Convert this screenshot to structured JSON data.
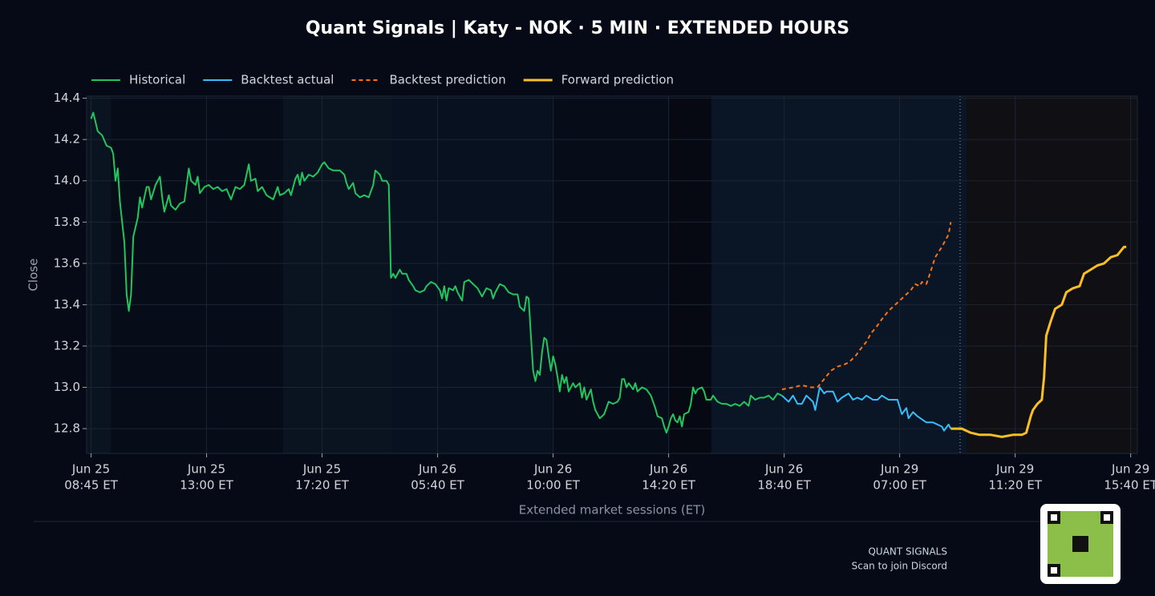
{
  "chart_data": {
    "type": "line",
    "title": "Quant Signals | Katy - NOK  ·  5 MIN  ·  EXTENDED HOURS",
    "ylabel": "Close",
    "xlabel": "Extended market sessions (ET)",
    "xlim": [
      -2,
      471
    ],
    "ylim": [
      12.68,
      14.41
    ],
    "grid": true,
    "yticks": [
      {
        "value": 12.8,
        "label": "12.8"
      },
      {
        "value": 13.0,
        "label": "13.0"
      },
      {
        "value": 13.2,
        "label": "13.2"
      },
      {
        "value": 13.4,
        "label": "13.4"
      },
      {
        "value": 13.6,
        "label": "13.6"
      },
      {
        "value": 13.8,
        "label": "13.8"
      },
      {
        "value": 14.0,
        "label": "14.0"
      },
      {
        "value": 14.2,
        "label": "14.2"
      },
      {
        "value": 14.4,
        "label": "14.4"
      }
    ],
    "xticks": [
      {
        "value": 0,
        "label": [
          "Jun 25",
          "08:45 ET"
        ]
      },
      {
        "value": 52,
        "label": [
          "Jun 25",
          "13:00 ET"
        ]
      },
      {
        "value": 104,
        "label": [
          "Jun 25",
          "17:20 ET"
        ]
      },
      {
        "value": 156,
        "label": [
          "Jun 26",
          "05:40 ET"
        ]
      },
      {
        "value": 208,
        "label": [
          "Jun 26",
          "10:00 ET"
        ]
      },
      {
        "value": 260,
        "label": [
          "Jun 26",
          "14:20 ET"
        ]
      },
      {
        "value": 312,
        "label": [
          "Jun 26",
          "18:40 ET"
        ]
      },
      {
        "value": 364,
        "label": [
          "Jun 29",
          "07:00 ET"
        ]
      },
      {
        "value": 416,
        "label": [
          "Jun 29",
          "11:20 ET"
        ]
      },
      {
        "value": 468,
        "label": [
          "Jun 29",
          "15:40 ET"
        ]
      }
    ],
    "series": [
      {
        "name": "Historical",
        "color": "#22c55e",
        "dashed": false,
        "x": [
          0,
          1,
          3,
          5,
          7,
          9,
          10,
          11,
          12,
          13,
          14,
          15,
          16,
          17,
          18,
          19,
          21,
          22,
          23,
          25,
          26,
          27,
          29,
          31,
          32,
          33,
          35,
          36,
          38,
          40,
          42,
          44,
          45,
          47,
          48,
          49,
          51,
          53,
          55,
          57,
          59,
          61,
          63,
          65,
          67,
          69,
          71,
          72,
          74,
          75,
          77,
          79,
          82,
          84,
          85,
          87,
          89,
          90,
          92,
          93,
          94,
          95,
          96,
          98,
          100,
          102,
          104,
          105,
          107,
          109,
          112,
          114,
          115,
          116,
          118,
          119,
          121,
          123,
          125,
          126,
          127,
          128,
          130,
          131,
          133,
          134,
          135,
          136,
          137,
          139,
          140,
          142,
          143,
          145,
          146,
          148,
          150,
          151,
          153,
          155,
          157,
          158,
          159,
          160,
          161,
          163,
          164,
          165,
          167,
          168,
          170,
          172,
          174,
          176,
          178,
          180,
          181,
          182,
          184,
          186,
          188,
          190,
          192,
          193,
          195,
          196,
          197,
          198,
          199,
          200,
          201,
          202,
          203,
          204,
          205,
          206,
          207,
          208,
          209,
          210,
          211,
          212,
          213,
          214,
          215,
          217,
          218,
          220,
          221,
          222,
          223,
          225,
          226,
          227,
          229,
          231,
          233,
          235,
          237,
          238,
          239,
          240,
          241,
          242,
          244,
          245,
          246,
          248,
          250,
          252,
          254,
          255,
          257,
          258,
          259,
          260,
          261,
          262,
          263,
          264,
          265,
          266,
          267,
          269,
          270,
          271,
          272,
          273,
          275,
          276,
          277,
          279,
          280,
          282,
          284,
          286,
          288,
          290,
          292,
          294,
          296,
          297,
          299,
          301,
          303,
          305,
          307,
          309,
          311
        ],
        "values": [
          14.3,
          14.33,
          14.24,
          14.22,
          14.17,
          14.16,
          14.13,
          14.0,
          14.06,
          13.9,
          13.8,
          13.7,
          13.45,
          13.37,
          13.45,
          13.73,
          13.82,
          13.92,
          13.87,
          13.97,
          13.97,
          13.91,
          13.98,
          14.02,
          13.92,
          13.85,
          13.93,
          13.88,
          13.86,
          13.89,
          13.9,
          14.06,
          14.0,
          13.98,
          14.02,
          13.94,
          13.97,
          13.98,
          13.96,
          13.97,
          13.95,
          13.96,
          13.91,
          13.97,
          13.96,
          13.98,
          14.08,
          14.0,
          14.01,
          13.95,
          13.97,
          13.93,
          13.91,
          13.97,
          13.93,
          13.94,
          13.96,
          13.93,
          14.01,
          14.03,
          13.98,
          14.04,
          14.0,
          14.03,
          14.02,
          14.04,
          14.08,
          14.09,
          14.06,
          14.05,
          14.05,
          14.03,
          13.99,
          13.96,
          13.99,
          13.94,
          13.92,
          13.93,
          13.92,
          13.95,
          13.98,
          14.05,
          14.03,
          14.0,
          14.0,
          13.98,
          13.53,
          13.55,
          13.53,
          13.57,
          13.55,
          13.55,
          13.52,
          13.49,
          13.47,
          13.46,
          13.47,
          13.49,
          13.51,
          13.5,
          13.47,
          13.43,
          13.49,
          13.42,
          13.48,
          13.47,
          13.49,
          13.46,
          13.42,
          13.51,
          13.52,
          13.5,
          13.48,
          13.44,
          13.48,
          13.47,
          13.43,
          13.46,
          13.5,
          13.49,
          13.46,
          13.45,
          13.45,
          13.39,
          13.37,
          13.44,
          13.43,
          13.25,
          13.08,
          13.03,
          13.08,
          13.06,
          13.17,
          13.24,
          13.23,
          13.15,
          13.08,
          13.15,
          13.11,
          13.05,
          12.98,
          13.06,
          13.02,
          13.05,
          12.98,
          13.02,
          13.0,
          13.02,
          12.95,
          13.0,
          12.94,
          12.99,
          12.93,
          12.89,
          12.85,
          12.87,
          12.93,
          12.92,
          12.93,
          12.95,
          13.04,
          13.04,
          13.0,
          13.02,
          12.99,
          13.02,
          12.98,
          13.0,
          12.99,
          12.96,
          12.9,
          12.86,
          12.85,
          12.81,
          12.78,
          12.81,
          12.85,
          12.87,
          12.84,
          12.83,
          12.86,
          12.81,
          12.87,
          12.88,
          12.92,
          13.0,
          12.97,
          12.99,
          13.0,
          12.98,
          12.94,
          12.94,
          12.96,
          12.93,
          12.92,
          12.92,
          12.91,
          12.92,
          12.91,
          12.93,
          12.91,
          12.96,
          12.94,
          12.95,
          12.95,
          12.96,
          12.94,
          12.97,
          12.96
        ]
      },
      {
        "name": "Backtest actual",
        "color": "#38bdf8",
        "dashed": false,
        "x": [
          311,
          314,
          316,
          318,
          320,
          322,
          323,
          325,
          326,
          328,
          330,
          331,
          334,
          336,
          338,
          341,
          343,
          345,
          347,
          349,
          352,
          354,
          356,
          359,
          361,
          363,
          365,
          367,
          368,
          370,
          372,
          376,
          379,
          383,
          384,
          386,
          387
        ],
        "values": [
          12.96,
          12.93,
          12.96,
          12.92,
          12.92,
          12.96,
          12.95,
          12.93,
          12.89,
          13.0,
          12.97,
          12.98,
          12.98,
          12.93,
          12.95,
          12.97,
          12.94,
          12.95,
          12.94,
          12.96,
          12.94,
          12.94,
          12.96,
          12.94,
          12.94,
          12.94,
          12.87,
          12.9,
          12.85,
          12.88,
          12.86,
          12.83,
          12.83,
          12.81,
          12.79,
          12.82,
          12.8
        ]
      },
      {
        "name": "Backtest prediction",
        "color": "#f97316",
        "dashed": true,
        "x": [
          311,
          316,
          320,
          324,
          327,
          330,
          333,
          336,
          339,
          341,
          344,
          346,
          349,
          351,
          354,
          356,
          359,
          361,
          364,
          366,
          369,
          371,
          373,
          374,
          376,
          377,
          380,
          383,
          386,
          387
        ],
        "values": [
          12.99,
          13.0,
          13.01,
          13.0,
          13.0,
          13.04,
          13.08,
          13.1,
          13.11,
          13.12,
          13.15,
          13.18,
          13.22,
          13.26,
          13.3,
          13.33,
          13.37,
          13.39,
          13.42,
          13.44,
          13.47,
          13.5,
          13.49,
          13.51,
          13.5,
          13.53,
          13.63,
          13.68,
          13.74,
          13.8
        ]
      },
      {
        "name": "Forward prediction",
        "color": "#fbbf24",
        "dashed": false,
        "x": [
          387,
          392,
          396,
          400,
          405,
          410,
          415,
          419,
          421,
          423,
          424,
          426,
          428,
          429,
          430,
          432,
          434,
          437,
          439,
          442,
          445,
          447,
          450,
          453,
          456,
          459,
          462,
          465,
          466
        ],
        "values": [
          12.8,
          12.8,
          12.78,
          12.77,
          12.77,
          12.76,
          12.77,
          12.77,
          12.78,
          12.86,
          12.89,
          12.92,
          12.94,
          13.05,
          13.25,
          13.32,
          13.38,
          13.4,
          13.46,
          13.48,
          13.49,
          13.55,
          13.57,
          13.59,
          13.6,
          13.63,
          13.64,
          13.68,
          13.68
        ]
      }
    ]
  },
  "footer": {
    "brand": "QUANT SIGNALS",
    "caption": "Scan to join Discord"
  }
}
